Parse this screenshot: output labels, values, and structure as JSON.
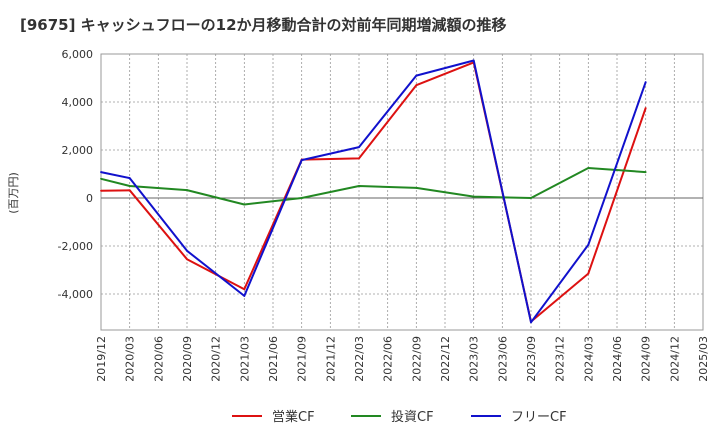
{
  "chart_data": {
    "type": "line",
    "title": "[9675]  キャッシュフローの12か月移動合計の対前年同期増減額の推移",
    "ylabel": "(百万円)",
    "xlabel": "",
    "ylim": [
      -5500,
      6000
    ],
    "yticks": [
      6000,
      4000,
      2000,
      0,
      -2000,
      -4000
    ],
    "ytick_labels": [
      "6,000",
      "4,000",
      "2,000",
      "0",
      "-2,000",
      "-4,000"
    ],
    "x_ticks": [
      "2019/12",
      "2020/03",
      "2020/06",
      "2020/09",
      "2020/12",
      "2021/03",
      "2021/06",
      "2021/09",
      "2021/12",
      "2022/03",
      "2022/06",
      "2022/09",
      "2022/12",
      "2023/03",
      "2023/06",
      "2023/09",
      "2023/12",
      "2024/03",
      "2024/06",
      "2024/09",
      "2024/12",
      "2025/03"
    ],
    "grid": true,
    "legend_position": "bottom",
    "series": [
      {
        "name": "営業CF",
        "color": "#dd1111",
        "points": [
          {
            "x": "2019/12",
            "y": 300
          },
          {
            "x": "2020/03",
            "y": 320
          },
          {
            "x": "2020/09",
            "y": -2550
          },
          {
            "x": "2021/03",
            "y": -3800
          },
          {
            "x": "2021/09",
            "y": 1600
          },
          {
            "x": "2022/03",
            "y": 1650
          },
          {
            "x": "2022/09",
            "y": 4700
          },
          {
            "x": "2023/03",
            "y": 5650
          },
          {
            "x": "2023/09",
            "y": -5150
          },
          {
            "x": "2024/03",
            "y": -3150
          },
          {
            "x": "2024/09",
            "y": 3750
          }
        ]
      },
      {
        "name": "投資CF",
        "color": "#228822",
        "points": [
          {
            "x": "2019/12",
            "y": 800
          },
          {
            "x": "2020/03",
            "y": 500
          },
          {
            "x": "2020/09",
            "y": 330
          },
          {
            "x": "2021/03",
            "y": -270
          },
          {
            "x": "2021/09",
            "y": 0
          },
          {
            "x": "2022/03",
            "y": 500
          },
          {
            "x": "2022/09",
            "y": 420
          },
          {
            "x": "2023/03",
            "y": 60
          },
          {
            "x": "2023/09",
            "y": 0
          },
          {
            "x": "2024/03",
            "y": 1250
          },
          {
            "x": "2024/09",
            "y": 1080
          }
        ]
      },
      {
        "name": "フリーCF",
        "color": "#1111cc",
        "points": [
          {
            "x": "2019/12",
            "y": 1080
          },
          {
            "x": "2020/03",
            "y": 830
          },
          {
            "x": "2020/09",
            "y": -2200
          },
          {
            "x": "2021/03",
            "y": -4080
          },
          {
            "x": "2021/09",
            "y": 1580
          },
          {
            "x": "2022/03",
            "y": 2120
          },
          {
            "x": "2022/09",
            "y": 5100
          },
          {
            "x": "2023/03",
            "y": 5730
          },
          {
            "x": "2023/09",
            "y": -5180
          },
          {
            "x": "2024/03",
            "y": -1950
          },
          {
            "x": "2024/09",
            "y": 4830
          }
        ]
      }
    ]
  }
}
